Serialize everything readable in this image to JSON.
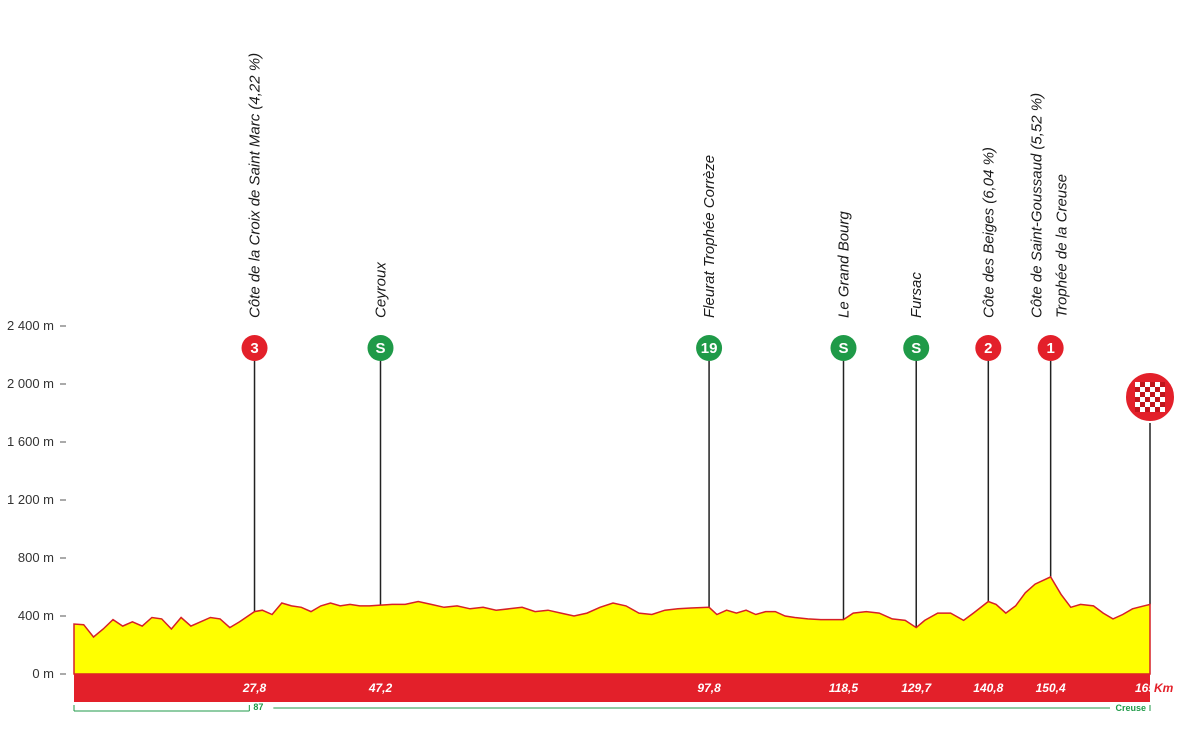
{
  "colors": {
    "profile_fill": "#ffff00",
    "profile_stroke": "#d62027",
    "base_band": "#e3202a",
    "sprint": "#1f9a48",
    "climb": "#e3202a",
    "dept_line": "#1f9a48"
  },
  "chart_data": {
    "type": "area",
    "title": "",
    "xlabel": "",
    "ylabel": "",
    "x_unit": "Km",
    "xlim": [
      0,
      165.7
    ],
    "ylim": [
      0,
      2600
    ],
    "grid": false,
    "yticks": [
      {
        "value": 0,
        "label": "0 m"
      },
      {
        "value": 400,
        "label": "400 m"
      },
      {
        "value": 800,
        "label": "800 m"
      },
      {
        "value": 1200,
        "label": "1 200 m"
      },
      {
        "value": 1600,
        "label": "1 600 m"
      },
      {
        "value": 2000,
        "label": "2 000 m"
      },
      {
        "value": 2400,
        "label": "2 400 m"
      }
    ],
    "profile": {
      "km": [
        0,
        1.5,
        3,
        4.5,
        6,
        7.5,
        9,
        10.5,
        12,
        13.5,
        15,
        16.5,
        18,
        19.5,
        21,
        22.5,
        24,
        25.5,
        27.8,
        29,
        30.5,
        32,
        33.5,
        35,
        36.5,
        38,
        39.5,
        41,
        42.5,
        44,
        45.5,
        47.2,
        49,
        51,
        53,
        55,
        57,
        59,
        61,
        63,
        65,
        67,
        69,
        71,
        73,
        75,
        77,
        79,
        81,
        83,
        85,
        87,
        89,
        91,
        93,
        95,
        97.8,
        99,
        100.5,
        102,
        103.5,
        105,
        106.5,
        108,
        109.5,
        111,
        113,
        115,
        116.5,
        118.5,
        120,
        122,
        124,
        126,
        128,
        129.7,
        131,
        133,
        135,
        137,
        138.5,
        140.8,
        142,
        143.5,
        145,
        146.5,
        148,
        150.4,
        152,
        153.5,
        155,
        157,
        158.5,
        160,
        161.5,
        163,
        165.7
      ],
      "elevation": [
        345,
        340,
        255,
        310,
        375,
        330,
        360,
        330,
        390,
        380,
        310,
        390,
        330,
        360,
        390,
        380,
        320,
        360,
        430,
        440,
        410,
        490,
        470,
        460,
        430,
        470,
        490,
        470,
        480,
        470,
        470,
        475,
        480,
        480,
        500,
        480,
        460,
        470,
        450,
        460,
        440,
        450,
        460,
        430,
        440,
        420,
        400,
        420,
        460,
        490,
        470,
        420,
        410,
        440,
        450,
        455,
        460,
        410,
        440,
        420,
        440,
        410,
        430,
        430,
        400,
        390,
        380,
        375,
        375,
        375,
        420,
        430,
        420,
        380,
        370,
        320,
        370,
        420,
        420,
        370,
        420,
        500,
        480,
        420,
        470,
        560,
        620,
        670,
        550,
        460,
        480,
        470,
        420,
        380,
        410,
        450,
        480
      ]
    },
    "waypoints": [
      {
        "km": 27.8,
        "km_label": "27,8",
        "badge": "3",
        "kind": "climb",
        "name": "Côte de la Croix de Saint Marc (4,22 %)",
        "name2": ""
      },
      {
        "km": 47.2,
        "km_label": "47,2",
        "badge": "S",
        "kind": "sprint",
        "name": "Ceyroux",
        "name2": ""
      },
      {
        "km": 97.8,
        "km_label": "97,8",
        "badge": "19",
        "kind": "sprint",
        "name": "Fleurat Trophée Corrèze",
        "name2": ""
      },
      {
        "km": 118.5,
        "km_label": "118,5",
        "badge": "S",
        "kind": "sprint",
        "name": "Le Grand Bourg",
        "name2": ""
      },
      {
        "km": 129.7,
        "km_label": "129,7",
        "badge": "S",
        "kind": "sprint",
        "name": "Fursac",
        "name2": ""
      },
      {
        "km": 140.8,
        "km_label": "140,8",
        "badge": "2",
        "kind": "climb",
        "name": "Côte des Beiges (6,04 %)",
        "name2": ""
      },
      {
        "km": 150.4,
        "km_label": "150,4",
        "badge": "1",
        "kind": "climb",
        "name": "Côte de Saint-Goussaud (5,52 %)",
        "name2": "Trophée de la Creuse"
      },
      {
        "km": 165.7,
        "km_label": "165,7",
        "badge": "",
        "kind": "finish",
        "name": "",
        "name2": ""
      }
    ],
    "departments": [
      {
        "label": "87",
        "from_km": 0,
        "to_km": 27
      },
      {
        "label": "Creuse",
        "from_km": 27,
        "to_km": 165.7
      }
    ]
  }
}
